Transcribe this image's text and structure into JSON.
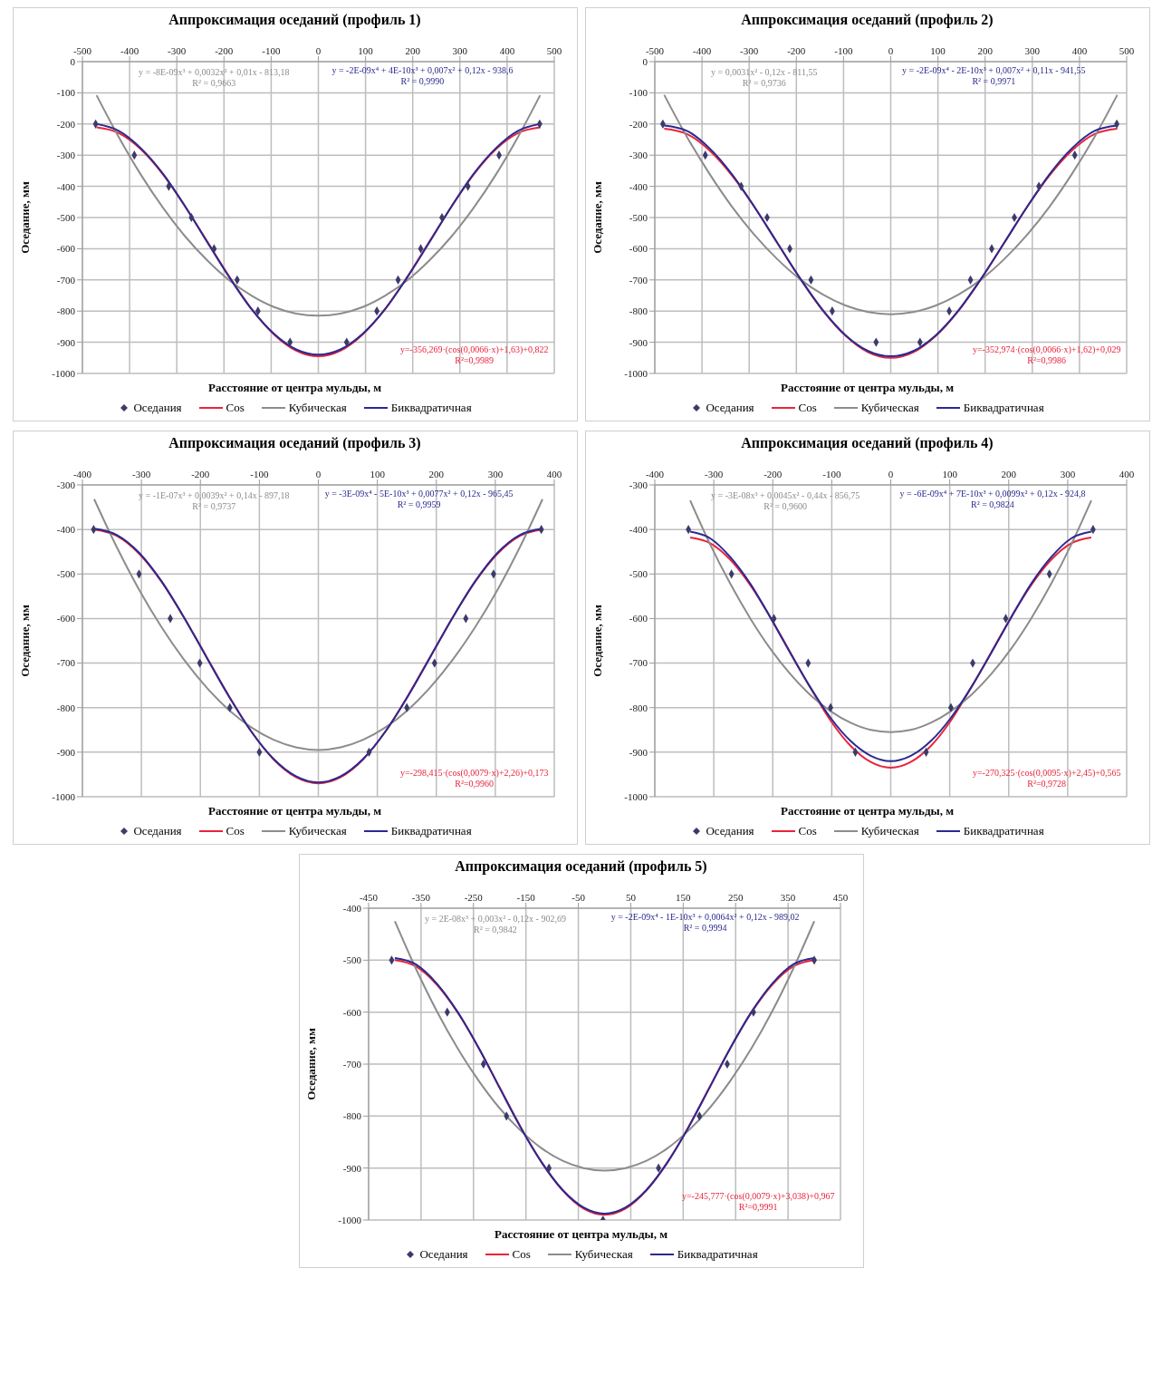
{
  "chart_data": [
    {
      "type": "line",
      "title": "Аппроксимация оседаний (профиль 1)",
      "xlabel": "Расстояние от центра мульды, м",
      "ylabel": "Оседание, мм",
      "xlim": [
        -500,
        500
      ],
      "xticks": [
        -500,
        -400,
        -300,
        -200,
        -100,
        0,
        100,
        200,
        300,
        400,
        500
      ],
      "ylim": [
        -1000,
        0
      ],
      "yticks": [
        -1000,
        -900,
        -800,
        -700,
        -600,
        -500,
        -400,
        -300,
        -200,
        -100,
        0
      ],
      "grid": true,
      "legend": "bottom",
      "annotations": [
        "y=-356,269·(cos(0,0066·x)+1,63)+0,822",
        "R²=0,9989",
        "y = -8E-09x³ + 0,0032x² + 0,01x - 813,18",
        "R² = 0,9663",
        "y = -2E-09x⁴ + 4E-10x³ + 0,007x² + 0,12x - 938,6",
        "R² = 0,9990"
      ],
      "series": [
        {
          "name": "Оседания",
          "type": "scatter",
          "color": "#3b3b6b",
          "marker": "diamond",
          "x": [
            -472,
            -390,
            -317,
            -269,
            -221,
            -172,
            -128,
            -60,
            60,
            124,
            169,
            217,
            262,
            317,
            383,
            469
          ],
          "values": [
            -200,
            -300,
            -400,
            -500,
            -600,
            -700,
            -800,
            -900,
            -900,
            -800,
            -700,
            -600,
            -500,
            -400,
            -300,
            -200
          ]
        },
        {
          "name": "Cos",
          "type": "line",
          "color": "#e8243c",
          "x": [
            -470,
            -423,
            -376,
            -329,
            -282,
            -235,
            -188,
            -141,
            -94,
            -47,
            0,
            47,
            94,
            141,
            188,
            235,
            282,
            329,
            376,
            423,
            470
          ],
          "values": [
            -211,
            -229,
            -281,
            -362,
            -465,
            -578,
            -691,
            -794,
            -875,
            -927,
            -945,
            -927,
            -875,
            -794,
            -691,
            -578,
            -465,
            -362,
            -281,
            -229,
            -211
          ]
        },
        {
          "name": "Кубическая",
          "type": "line",
          "color": "#8c8c8c",
          "x": [
            -470,
            -423,
            -376,
            -329,
            -282,
            -235,
            -188,
            -141,
            -94,
            -47,
            0,
            47,
            94,
            141,
            188,
            235,
            282,
            329,
            376,
            423,
            470
          ],
          "values": [
            -108,
            -242,
            -363,
            -469,
            -561,
            -638,
            -702,
            -751,
            -787,
            -808,
            -815,
            -808,
            -787,
            -751,
            -702,
            -638,
            -561,
            -469,
            -363,
            -242,
            -108
          ]
        },
        {
          "name": "Биквадратичная",
          "type": "line",
          "color": "#2a2a90",
          "x": [
            -470,
            -423,
            -376,
            -329,
            -282,
            -235,
            -188,
            -141,
            -94,
            -47,
            0,
            47,
            94,
            141,
            188,
            235,
            282,
            329,
            376,
            423,
            470
          ],
          "values": [
            -200,
            -222,
            -278,
            -360,
            -465,
            -580,
            -693,
            -795,
            -873,
            -923,
            -940,
            -923,
            -873,
            -795,
            -693,
            -580,
            -465,
            -360,
            -278,
            -222,
            -200
          ]
        }
      ]
    },
    {
      "type": "line",
      "title": "Аппроксимация оседаний (профиль 2)",
      "xlabel": "Расстояние от центра мульды, м",
      "ylabel": "Оседание, мм",
      "xlim": [
        -500,
        500
      ],
      "xticks": [
        -500,
        -400,
        -300,
        -200,
        -100,
        0,
        100,
        200,
        300,
        400,
        500
      ],
      "ylim": [
        -1000,
        0
      ],
      "yticks": [
        -1000,
        -900,
        -800,
        -700,
        -600,
        -500,
        -400,
        -300,
        -200,
        -100,
        0
      ],
      "grid": true,
      "legend": "bottom",
      "annotations": [
        "y=-352,974·(cos(0,0066·x)+1,62)+0,029",
        "R²=0,9986",
        "y = 0,0031x² - 0,12x - 811,55",
        "R² = 0,9736",
        "y = -2E-09x⁴ - 2E-10x³ + 0,007x² + 0,11x - 941,55",
        "R² = 0,9971"
      ],
      "series": [
        {
          "name": "Оседания",
          "type": "scatter",
          "color": "#3b3b6b",
          "marker": "diamond",
          "x": [
            -483,
            -393,
            -317,
            -262,
            -214,
            -169,
            -124,
            -31,
            62,
            124,
            169,
            214,
            262,
            314,
            390,
            479
          ],
          "values": [
            -200,
            -300,
            -400,
            -500,
            -600,
            -700,
            -800,
            -900,
            -900,
            -800,
            -700,
            -600,
            -500,
            -400,
            -300,
            -200
          ]
        },
        {
          "name": "Cos",
          "type": "line",
          "color": "#e8243c",
          "x": [
            -480,
            -432,
            -384,
            -336,
            -288,
            -240,
            -192,
            -144,
            -96,
            -48,
            0,
            48,
            96,
            144,
            192,
            240,
            288,
            336,
            384,
            432,
            480
          ],
          "values": [
            -215,
            -232,
            -285,
            -366,
            -468,
            -582,
            -696,
            -798,
            -879,
            -932,
            -950,
            -932,
            -879,
            -798,
            -696,
            -582,
            -468,
            -366,
            -285,
            -232,
            -215
          ]
        },
        {
          "name": "Кубическая",
          "type": "line",
          "color": "#8c8c8c",
          "x": [
            -480,
            -432,
            -384,
            -336,
            -288,
            -240,
            -192,
            -144,
            -96,
            -48,
            0,
            48,
            96,
            144,
            192,
            240,
            288,
            336,
            384,
            432,
            480
          ],
          "values": [
            -107,
            -241,
            -360,
            -466,
            -557,
            -634,
            -698,
            -747,
            -782,
            -803,
            -810,
            -803,
            -782,
            -747,
            -698,
            -634,
            -557,
            -466,
            -360,
            -241,
            -107
          ]
        },
        {
          "name": "Биквадратичная",
          "type": "line",
          "color": "#2a2a90",
          "x": [
            -480,
            -432,
            -384,
            -336,
            -288,
            -240,
            -192,
            -144,
            -96,
            -48,
            0,
            48,
            96,
            144,
            192,
            240,
            288,
            336,
            384,
            432,
            480
          ],
          "values": [
            -205,
            -222,
            -278,
            -362,
            -468,
            -582,
            -695,
            -797,
            -877,
            -928,
            -945,
            -928,
            -877,
            -797,
            -695,
            -582,
            -468,
            -362,
            -278,
            -222,
            -205
          ]
        }
      ]
    },
    {
      "type": "line",
      "title": "Аппроксимация оседаний (профиль 3)",
      "xlabel": "Расстояние от центра мульды, м",
      "ylabel": "Оседание, мм",
      "xlim": [
        -400,
        400
      ],
      "xticks": [
        -400,
        -300,
        -200,
        -100,
        0,
        100,
        200,
        300,
        400
      ],
      "ylim": [
        -1000,
        -300
      ],
      "yticks": [
        -1000,
        -900,
        -800,
        -700,
        -600,
        -500,
        -400,
        -300
      ],
      "grid": true,
      "legend": "bottom",
      "annotations": [
        "y=-298,415·(cos(0,0079·x)+2,26)+0,173",
        "R²=0,9960",
        "y = -1E-07x³ + 0,0039x² + 0,14x - 897,18",
        "R² = 0,9737",
        "y = -3E-09x⁴ - 5E-10x³ + 0,0077x² + 0,12x - 965,45",
        "R² = 0,9959"
      ],
      "series": [
        {
          "name": "Оседания",
          "type": "scatter",
          "color": "#3b3b6b",
          "marker": "diamond",
          "x": [
            -381,
            -304,
            -251,
            -201,
            -150,
            -100,
            86,
            150,
            197,
            250,
            297,
            378
          ],
          "values": [
            -400,
            -500,
            -600,
            -700,
            -800,
            -900,
            -900,
            -800,
            -700,
            -600,
            -500,
            -400
          ]
        },
        {
          "name": "Cos",
          "type": "line",
          "color": "#e8243c",
          "x": [
            -380,
            -342,
            -304,
            -266,
            -228,
            -190,
            -152,
            -114,
            -76,
            -38,
            0,
            38,
            76,
            114,
            152,
            190,
            228,
            266,
            304,
            342,
            380
          ],
          "values": [
            -400,
            -414,
            -454,
            -517,
            -597,
            -685,
            -773,
            -853,
            -916,
            -956,
            -970,
            -956,
            -916,
            -853,
            -773,
            -685,
            -597,
            -517,
            -454,
            -414,
            -400
          ]
        },
        {
          "name": "Кубическая",
          "type": "line",
          "color": "#8c8c8c",
          "x": [
            -380,
            -342,
            -304,
            -266,
            -228,
            -190,
            -152,
            -114,
            -76,
            -38,
            0,
            38,
            76,
            114,
            152,
            190,
            228,
            266,
            304,
            342,
            380
          ],
          "values": [
            -332,
            -439,
            -535,
            -619,
            -692,
            -754,
            -805,
            -844,
            -872,
            -889,
            -895,
            -889,
            -872,
            -844,
            -805,
            -754,
            -692,
            -619,
            -535,
            -439,
            -332
          ]
        },
        {
          "name": "Биквадратичная",
          "type": "line",
          "color": "#2a2a90",
          "x": [
            -380,
            -342,
            -304,
            -266,
            -228,
            -190,
            -152,
            -114,
            -76,
            -38,
            0,
            38,
            76,
            114,
            152,
            190,
            228,
            266,
            304,
            342,
            380
          ],
          "values": [
            -398,
            -412,
            -452,
            -516,
            -597,
            -686,
            -774,
            -853,
            -915,
            -954,
            -968,
            -954,
            -915,
            -853,
            -774,
            -686,
            -597,
            -516,
            -452,
            -412,
            -398
          ]
        }
      ]
    },
    {
      "type": "line",
      "title": "Аппроксимация оседаний (профиль 4)",
      "xlabel": "Расстояние от центра мульды, м",
      "ylabel": "Оседание, мм",
      "xlim": [
        -400,
        400
      ],
      "xticks": [
        -400,
        -300,
        -200,
        -100,
        0,
        100,
        200,
        300,
        400
      ],
      "ylim": [
        -1000,
        -300
      ],
      "yticks": [
        -1000,
        -900,
        -800,
        -700,
        -600,
        -500,
        -400,
        -300
      ],
      "grid": true,
      "legend": "bottom",
      "annotations": [
        "y=-270,325·(cos(0,0095·x)+2,45)+0,565",
        "R²=0,9728",
        "y = -3E-08x³ + 0,0045x² - 0,44x - 856,75",
        "R² = 0,9600",
        "y = -6E-09x⁴ + 7E-10x³ + 0,0099x² + 0,12x - 924,8",
        "R² = 0,9824"
      ],
      "series": [
        {
          "name": "Оседания",
          "type": "scatter",
          "color": "#3b3b6b",
          "marker": "diamond",
          "x": [
            -343,
            -270,
            -198,
            -140,
            -102,
            -60,
            60,
            102,
            139,
            195,
            269,
            343
          ],
          "values": [
            -400,
            -500,
            -600,
            -700,
            -800,
            -900,
            -900,
            -800,
            -700,
            -600,
            -500,
            -400
          ]
        },
        {
          "name": "Cos",
          "type": "line",
          "color": "#e8243c",
          "x": [
            -340,
            -306,
            -272,
            -238,
            -204,
            -170,
            -136,
            -102,
            -68,
            -34,
            0,
            34,
            68,
            102,
            136,
            170,
            204,
            238,
            272,
            306,
            340
          ],
          "values": [
            -418,
            -431,
            -468,
            -525,
            -597,
            -677,
            -756,
            -829,
            -886,
            -922,
            -935,
            -922,
            -886,
            -829,
            -756,
            -677,
            -597,
            -525,
            -468,
            -431,
            -418
          ]
        },
        {
          "name": "Кубическая",
          "type": "line",
          "color": "#8c8c8c",
          "x": [
            -340,
            -306,
            -272,
            -238,
            -204,
            -170,
            -136,
            -102,
            -68,
            -34,
            0,
            34,
            68,
            102,
            136,
            170,
            204,
            238,
            272,
            306,
            340
          ],
          "values": [
            -335,
            -434,
            -522,
            -600,
            -668,
            -725,
            -772,
            -808,
            -834,
            -850,
            -855,
            -850,
            -834,
            -808,
            -772,
            -725,
            -668,
            -600,
            -522,
            -434,
            -335
          ]
        },
        {
          "name": "Биквадратичная",
          "type": "line",
          "color": "#2a2a90",
          "x": [
            -340,
            -306,
            -272,
            -238,
            -204,
            -170,
            -136,
            -102,
            -68,
            -34,
            0,
            34,
            68,
            102,
            136,
            170,
            204,
            238,
            272,
            306,
            340
          ],
          "values": [
            -405,
            -420,
            -462,
            -522,
            -598,
            -678,
            -755,
            -823,
            -875,
            -908,
            -920,
            -908,
            -875,
            -823,
            -755,
            -678,
            -598,
            -522,
            -462,
            -420,
            -405
          ]
        }
      ]
    },
    {
      "type": "line",
      "title": "Аппроксимация оседаний (профиль 5)",
      "xlabel": "Расстояние от центра мульды, м",
      "ylabel": "Оседание, мм",
      "xlim": [
        -450,
        450
      ],
      "xticks": [
        -450,
        -350,
        -250,
        -150,
        -50,
        50,
        150,
        250,
        350,
        450
      ],
      "ylim": [
        -1000,
        -400
      ],
      "yticks": [
        -1000,
        -900,
        -800,
        -700,
        -600,
        -500,
        -400
      ],
      "grid": true,
      "legend": "bottom",
      "annotations": [
        "y=-245,777·(cos(0,0079·x)+3,038)+0,967",
        "R²=0,9991",
        "y = 2E-08x³ + 0,003x² - 0,12x - 902,69",
        "R² = 0,9842",
        "y = -2E-09x⁴ - 1E-10x³ + 0,0064x² + 0,12x - 989,02",
        "R² = 0,9994"
      ],
      "series": [
        {
          "name": "Оседания",
          "type": "scatter",
          "color": "#3b3b6b",
          "marker": "diamond",
          "x": [
            -406,
            -300,
            -231,
            -187,
            -106,
            -3,
            103,
            181,
            234,
            284,
            400
          ],
          "values": [
            -500,
            -600,
            -700,
            -800,
            -900,
            -1000,
            -900,
            -800,
            -700,
            -600,
            -500
          ]
        },
        {
          "name": "Cos",
          "type": "line",
          "color": "#e8243c",
          "x": [
            -400,
            -360,
            -320,
            -280,
            -240,
            -200,
            -160,
            -120,
            -80,
            -40,
            0,
            40,
            80,
            120,
            160,
            200,
            240,
            280,
            320,
            360,
            400
          ],
          "values": [
            -500,
            -512,
            -547,
            -601,
            -669,
            -745,
            -821,
            -889,
            -943,
            -978,
            -990,
            -978,
            -943,
            -889,
            -821,
            -745,
            -669,
            -601,
            -547,
            -512,
            -500
          ]
        },
        {
          "name": "Кубическая",
          "type": "line",
          "color": "#8c8c8c",
          "x": [
            -400,
            -360,
            -320,
            -280,
            -240,
            -200,
            -160,
            -120,
            -80,
            -40,
            0,
            40,
            80,
            120,
            160,
            200,
            240,
            280,
            320,
            360,
            400
          ],
          "values": [
            -425,
            -516,
            -598,
            -670,
            -732,
            -785,
            -828,
            -862,
            -886,
            -900,
            -905,
            -900,
            -886,
            -862,
            -828,
            -785,
            -732,
            -670,
            -598,
            -516,
            -425
          ]
        },
        {
          "name": "Биквадратичная",
          "type": "line",
          "color": "#2a2a90",
          "x": [
            -400,
            -360,
            -320,
            -280,
            -240,
            -200,
            -160,
            -120,
            -80,
            -40,
            0,
            40,
            80,
            120,
            160,
            200,
            240,
            280,
            320,
            360,
            400
          ],
          "values": [
            -496,
            -508,
            -545,
            -600,
            -669,
            -746,
            -822,
            -889,
            -942,
            -976,
            -988,
            -976,
            -942,
            -889,
            -822,
            -746,
            -669,
            -600,
            -545,
            -508,
            -496
          ]
        }
      ]
    }
  ]
}
